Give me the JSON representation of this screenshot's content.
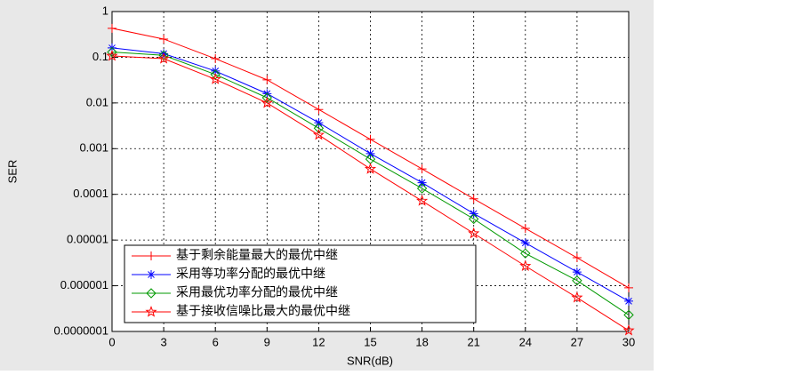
{
  "chart_data": {
    "type": "line",
    "y_scale": "log",
    "grid": true,
    "legend": "lower left",
    "xlabel": "SNR(dB)",
    "ylabel": "SER",
    "x": [
      0,
      3,
      6,
      9,
      12,
      15,
      18,
      21,
      24,
      27,
      30
    ],
    "xlim": [
      0,
      30
    ],
    "xticks": [
      0,
      3,
      6,
      9,
      12,
      15,
      18,
      21,
      24,
      27,
      30
    ],
    "ylim": [
      1e-07,
      1
    ],
    "yticks": [
      {
        "value": 1e-07,
        "label": "0.0000001"
      },
      1e-06,
      1e-05,
      0.0001,
      0.001,
      0.01,
      0.1,
      1
    ],
    "series": [
      {
        "name": "基于剩余能量最大的最优中继",
        "color": "#ff0000",
        "marker": "+",
        "values": [
          0.43,
          0.25,
          0.093,
          0.032,
          0.0072,
          0.0016,
          0.00036,
          8e-05,
          1.8e-05,
          4.1e-06,
          9e-07
        ]
      },
      {
        "name": "采用等功率分配的最优中继",
        "color": "#0000ff",
        "marker": "*",
        "values": [
          0.16,
          0.12,
          0.05,
          0.016,
          0.0037,
          0.00078,
          0.00018,
          3.8e-05,
          8.7e-06,
          2e-06,
          4.6e-07
        ]
      },
      {
        "name": "采用最优功率分配的最优中继",
        "color": "#009900",
        "marker": "diamond",
        "values": [
          0.13,
          0.11,
          0.042,
          0.013,
          0.0028,
          0.00059,
          0.000135,
          2.9e-05,
          5.1e-06,
          1.3e-06,
          2.3e-07
        ]
      },
      {
        "name": "基于接收信噪比最大的最优中继",
        "color": "#ff0000",
        "marker": "pentagram",
        "values": [
          0.107,
          0.093,
          0.033,
          0.01,
          0.002,
          0.00036,
          7.2e-05,
          1.4e-05,
          2.7e-06,
          5.5e-07,
          1.05e-07
        ]
      }
    ]
  }
}
